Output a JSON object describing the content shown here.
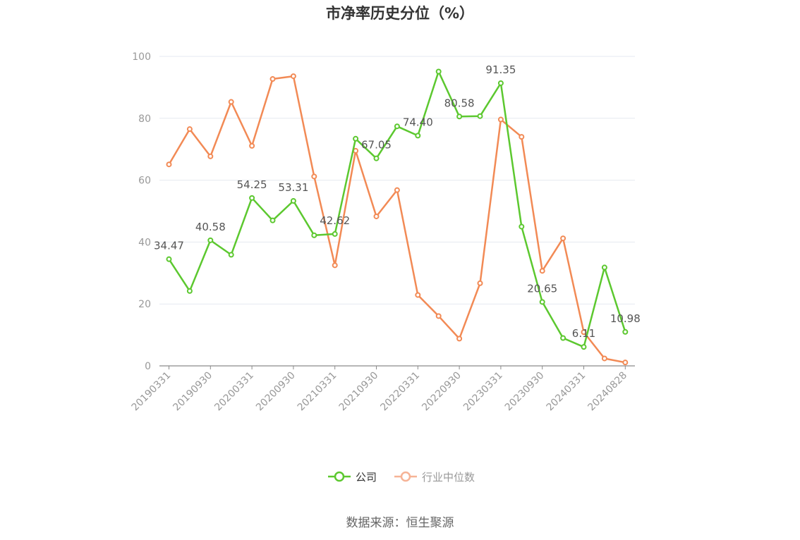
{
  "chart_data": {
    "type": "line",
    "title": "市净率历史分位（%）",
    "ylim": [
      0,
      100
    ],
    "yticks": [
      0,
      20,
      40,
      60,
      80,
      100
    ],
    "xticks": [
      "20190331",
      "20190930",
      "20200331",
      "20200930",
      "20210331",
      "20210930",
      "20220331",
      "20220930",
      "20230331",
      "20230930",
      "20240331",
      "20240828"
    ],
    "grid": true,
    "legend_position": "bottom",
    "series": [
      {
        "name": "公司",
        "color": "#5cc82f",
        "values": [
          34.47,
          24.2,
          40.58,
          35.9,
          54.25,
          47.0,
          53.31,
          42.2,
          42.62,
          73.4,
          67.05,
          77.4,
          74.4,
          95.1,
          80.58,
          80.7,
          91.35,
          45.0,
          20.65,
          9.0,
          6.11,
          31.8,
          10.98
        ],
        "labels": [
          "34.47",
          "",
          "40.58",
          "",
          "54.25",
          "",
          "53.31",
          "",
          "42.62",
          "",
          "67.05",
          "",
          "74.40",
          "",
          "80.58",
          "",
          "91.35",
          "",
          "20.65",
          "",
          "6.11",
          "",
          "10.98"
        ]
      },
      {
        "name": "行业中位数",
        "color": "#f28a55",
        "values": [
          65.1,
          76.5,
          67.7,
          85.3,
          71.1,
          92.7,
          93.6,
          61.2,
          32.5,
          69.5,
          48.3,
          56.8,
          22.9,
          16.1,
          8.8,
          26.7,
          79.6,
          74.0,
          30.7,
          41.2,
          10.9,
          2.4,
          1.1
        ]
      }
    ]
  },
  "source_text": "数据来源：恒生聚源"
}
